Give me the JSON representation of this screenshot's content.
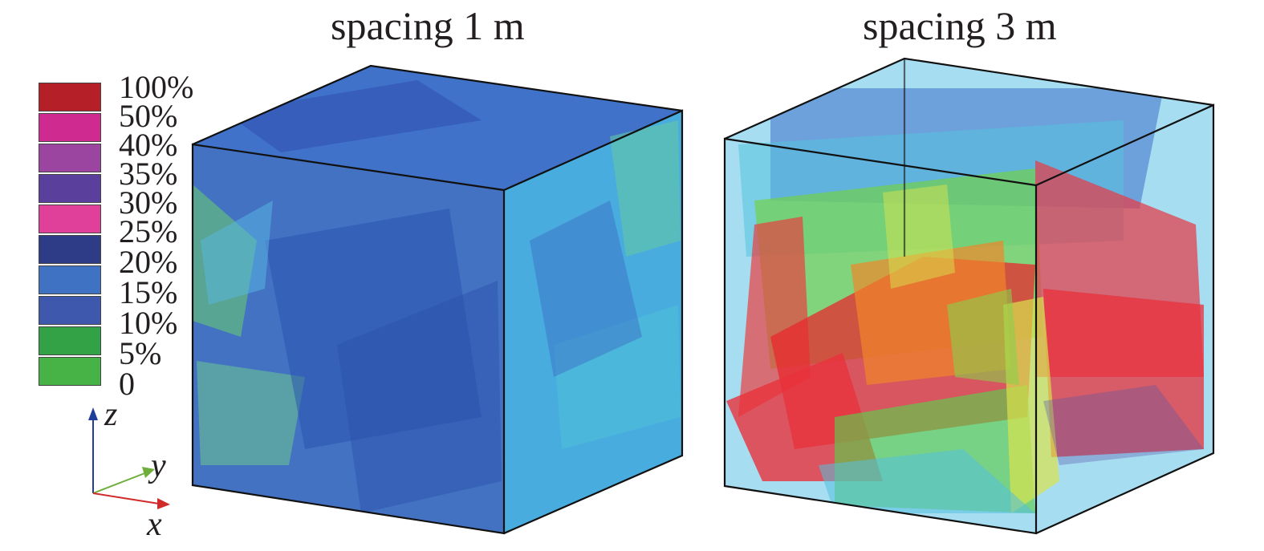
{
  "titles": {
    "left": "spacing 1 m",
    "right": "spacing 3 m"
  },
  "legend": {
    "entries": [
      {
        "label": "100%",
        "color": "#b51f28"
      },
      {
        "label": "50%",
        "color": "#cf2a8f"
      },
      {
        "label": "40%",
        "color": "#9b45a0"
      },
      {
        "label": "35%",
        "color": "#5a3f9c"
      },
      {
        "label": "30%",
        "color": "#e0409a"
      },
      {
        "label": "25%",
        "color": "#2e3b87"
      },
      {
        "label": "20%",
        "color": "#3f72c2"
      },
      {
        "label": "15%",
        "color": "#3d58ad"
      },
      {
        "label": "10%",
        "color": "#33a145"
      },
      {
        "label": "5%",
        "color": "#47b347"
      }
    ],
    "bottom_label": "0"
  },
  "axes": {
    "z": "z",
    "y": "y",
    "x": "x"
  },
  "colors": {
    "frame": "#111111",
    "blue_dark": "#2f56b0",
    "blue_mid": "#3f7fd0",
    "cyan": "#47b6e3",
    "green": "#6ccf3e",
    "yellow": "#d8e04a",
    "orange": "#f08a28",
    "red": "#e8303a",
    "axis_z": "#1f3e9c",
    "axis_y": "#6fae3a",
    "axis_x": "#d12a2a"
  }
}
